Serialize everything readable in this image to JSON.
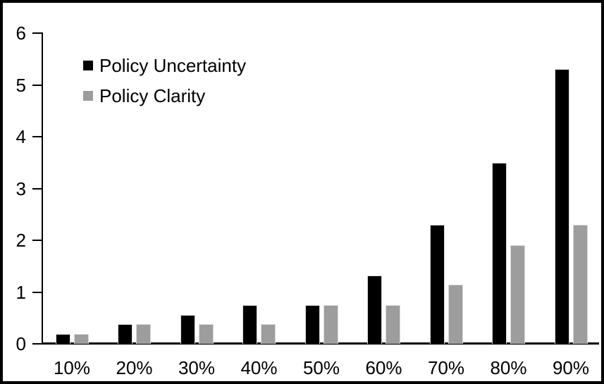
{
  "window": {
    "background": "#ffffff",
    "frame_border_color": "#000000"
  },
  "chart_data": {
    "type": "bar",
    "title": "",
    "xlabel": "",
    "ylabel": "",
    "categories": [
      "10%",
      "20%",
      "30%",
      "40%",
      "50%",
      "60%",
      "70%",
      "80%",
      "90%"
    ],
    "series": [
      {
        "name": "Policy Uncertainty",
        "color": "#000000",
        "values": [
          0.19,
          0.38,
          0.56,
          0.75,
          0.75,
          1.32,
          2.3,
          3.5,
          5.3
        ]
      },
      {
        "name": "Policy Clarity",
        "color": "#9d9d9d",
        "values": [
          0.19,
          0.38,
          0.38,
          0.38,
          0.75,
          0.75,
          1.14,
          1.9,
          2.3
        ]
      }
    ],
    "ylim": [
      0,
      6
    ],
    "yticks": [
      0,
      1,
      2,
      3,
      4,
      5,
      6
    ],
    "grid": false,
    "legend_position": "inside-top-left",
    "axis_color": "#000000",
    "bar_outline_color": "#d9d9d9"
  }
}
